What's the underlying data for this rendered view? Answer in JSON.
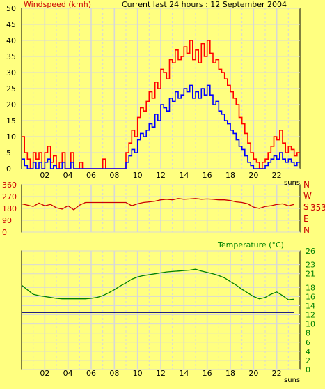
{
  "colors": {
    "background": "#ffff80",
    "grid": "#d8d8d8",
    "gust": "#ff0000",
    "avg": "#0000ff",
    "direction": "#cc0000",
    "temperature": "#008000",
    "reference_line": "#000080",
    "axis_text_dark": "#000000",
    "axis_text_red": "#cc0000",
    "axis_text_green": "#008000"
  },
  "chart_data": [
    {
      "type": "line",
      "title": "Windspeed (kmh)",
      "subtitle": "Current last 24 hours : 12 September 2004",
      "xlabel": "",
      "x_unit_label": "suns",
      "x_ticks": [
        "02",
        "04",
        "06",
        "08",
        "10",
        "12",
        "14",
        "16",
        "18",
        "20",
        "22"
      ],
      "ylim": [
        0,
        50
      ],
      "y_ticks": [
        0,
        5,
        10,
        15,
        20,
        25,
        30,
        35,
        40,
        45,
        50
      ],
      "grid": true,
      "series": [
        {
          "role": "gust",
          "x": [
            0,
            0.25,
            0.5,
            0.75,
            1,
            1.25,
            1.5,
            1.75,
            2,
            2.25,
            2.5,
            2.75,
            3,
            3.25,
            3.5,
            3.75,
            4,
            4.25,
            4.5,
            4.75,
            5,
            5.25,
            5.5,
            5.75,
            6,
            6.25,
            6.5,
            6.75,
            7,
            7.25,
            7.5,
            7.75,
            8,
            8.25,
            8.5,
            8.75,
            9,
            9.25,
            9.5,
            9.75,
            10,
            10.25,
            10.5,
            10.75,
            11,
            11.25,
            11.5,
            11.75,
            12,
            12.25,
            12.5,
            12.75,
            13,
            13.25,
            13.5,
            13.75,
            14,
            14.25,
            14.5,
            14.75,
            15,
            15.25,
            15.5,
            15.75,
            16,
            16.25,
            16.5,
            16.75,
            17,
            17.25,
            17.5,
            17.75,
            18,
            18.25,
            18.5,
            18.75,
            19,
            19.25,
            19.5,
            19.75,
            20,
            20.25,
            20.5,
            20.75,
            21,
            21.25,
            21.5,
            21.75,
            22,
            22.25,
            22.5,
            22.75,
            23,
            23.25,
            23.5,
            23.75
          ],
          "values": [
            10,
            5,
            3,
            0,
            5,
            3,
            5,
            0,
            5,
            7,
            2,
            4,
            0,
            2,
            5,
            0,
            0,
            5,
            0,
            0,
            2,
            0,
            0,
            0,
            0,
            0,
            0,
            0,
            3,
            0,
            0,
            0,
            0,
            0,
            0,
            0,
            5,
            8,
            12,
            10,
            16,
            19,
            18,
            21,
            24,
            22,
            27,
            25,
            31,
            30,
            28,
            34,
            33,
            37,
            34,
            35,
            38,
            36,
            40,
            34,
            37,
            33,
            39,
            35,
            40,
            36,
            33,
            34,
            31,
            30,
            28,
            26,
            24,
            22,
            20,
            16,
            14,
            11,
            8,
            5,
            3,
            2,
            0,
            2,
            3,
            5,
            7,
            10,
            9,
            12,
            8,
            5,
            7,
            6,
            4,
            5
          ],
          "note": "values approximate; series line colored red"
        },
        {
          "role": "average",
          "x": [
            0,
            0.25,
            0.5,
            0.75,
            1,
            1.25,
            1.5,
            1.75,
            2,
            2.25,
            2.5,
            2.75,
            3,
            3.25,
            3.5,
            3.75,
            4,
            4.25,
            4.5,
            4.75,
            5,
            5.25,
            5.5,
            5.75,
            6,
            6.25,
            6.5,
            6.75,
            7,
            7.25,
            7.5,
            7.75,
            8,
            8.25,
            8.5,
            8.75,
            9,
            9.25,
            9.5,
            9.75,
            10,
            10.25,
            10.5,
            10.75,
            11,
            11.25,
            11.5,
            11.75,
            12,
            12.25,
            12.5,
            12.75,
            13,
            13.25,
            13.5,
            13.75,
            14,
            14.25,
            14.5,
            14.75,
            15,
            15.25,
            15.5,
            15.75,
            16,
            16.25,
            16.5,
            16.75,
            17,
            17.25,
            17.5,
            17.75,
            18,
            18.25,
            18.5,
            18.75,
            19,
            19.25,
            19.5,
            19.75,
            20,
            20.25,
            20.5,
            20.75,
            21,
            21.25,
            21.5,
            21.75,
            22,
            22.25,
            22.5,
            22.75,
            23,
            23.25,
            23.5,
            23.75
          ],
          "values": [
            3,
            1,
            0,
            0,
            2,
            0,
            2,
            0,
            2,
            3,
            0,
            1,
            0,
            0,
            2,
            0,
            0,
            2,
            0,
            0,
            0,
            0,
            0,
            0,
            0,
            0,
            0,
            0,
            0,
            0,
            0,
            0,
            0,
            0,
            0,
            0,
            2,
            4,
            6,
            5,
            9,
            11,
            10,
            12,
            14,
            13,
            17,
            15,
            20,
            19,
            18,
            22,
            21,
            24,
            22,
            23,
            25,
            24,
            26,
            22,
            24,
            22,
            25,
            23,
            26,
            23,
            20,
            21,
            18,
            17,
            15,
            14,
            12,
            11,
            9,
            7,
            6,
            4,
            2,
            1,
            0,
            0,
            0,
            0,
            1,
            2,
            3,
            4,
            3,
            5,
            3,
            2,
            3,
            2,
            1,
            2
          ]
        }
      ]
    },
    {
      "type": "line",
      "title": "",
      "x_unit_label": "",
      "x_ticks": [],
      "ylim": [
        0,
        360
      ],
      "y_ticks": [
        0,
        90,
        180,
        270,
        360
      ],
      "right_labels": [
        "N",
        "W",
        "S",
        "E",
        "N"
      ],
      "current_value": "353",
      "grid": true,
      "series": [
        {
          "role": "direction",
          "x": [
            0,
            0.5,
            1,
            1.5,
            2,
            2.5,
            3,
            3.5,
            4,
            4.5,
            5,
            5.5,
            6,
            6.5,
            7,
            7.5,
            8,
            8.5,
            9,
            9.5,
            10,
            10.5,
            11,
            11.5,
            12,
            12.5,
            13,
            13.5,
            14,
            14.5,
            15,
            15.5,
            16,
            16.5,
            17,
            17.5,
            18,
            18.5,
            19,
            19.5,
            20,
            20.5,
            21,
            21.5,
            22,
            22.5,
            23,
            23.5
          ],
          "values": [
            215,
            205,
            195,
            220,
            200,
            210,
            185,
            175,
            200,
            170,
            205,
            225,
            225,
            225,
            225,
            225,
            225,
            225,
            225,
            200,
            215,
            225,
            230,
            235,
            245,
            250,
            245,
            255,
            250,
            252,
            255,
            250,
            252,
            250,
            245,
            245,
            240,
            230,
            225,
            215,
            190,
            180,
            195,
            200,
            210,
            215,
            200,
            210
          ]
        }
      ]
    },
    {
      "type": "line",
      "title": "Temperature (°C)",
      "x_unit_label": "suns",
      "x_ticks": [
        "02",
        "04",
        "06",
        "08",
        "10",
        "12",
        "14",
        "16",
        "18",
        "20",
        "22"
      ],
      "ylim": [
        0,
        26
      ],
      "y_ticks": [
        0,
        2,
        4,
        6,
        8,
        10,
        12,
        14,
        16,
        18,
        21,
        23,
        26
      ],
      "grid": true,
      "series": [
        {
          "role": "temperature",
          "x": [
            0,
            0.5,
            1,
            1.5,
            2,
            2.5,
            3,
            3.5,
            4,
            4.5,
            5,
            5.5,
            6,
            6.5,
            7,
            7.5,
            8,
            8.5,
            9,
            9.5,
            10,
            10.5,
            11,
            11.5,
            12,
            12.5,
            13,
            13.5,
            14,
            14.5,
            15,
            15.5,
            16,
            16.5,
            17,
            17.5,
            18,
            18.5,
            19,
            19.5,
            20,
            20.5,
            21,
            21.5,
            22,
            22.5,
            23,
            23.5
          ],
          "values": [
            18.5,
            17.5,
            16.5,
            16.2,
            16.0,
            15.8,
            15.6,
            15.5,
            15.5,
            15.5,
            15.5,
            15.5,
            15.6,
            15.8,
            16.2,
            16.8,
            17.5,
            18.3,
            19.0,
            19.8,
            20.3,
            20.6,
            20.8,
            21.0,
            21.2,
            21.4,
            21.5,
            21.6,
            21.7,
            21.8,
            22.0,
            21.6,
            21.3,
            21.0,
            20.6,
            20.1,
            19.3,
            18.5,
            17.6,
            16.8,
            16.0,
            15.5,
            15.8,
            16.5,
            17.0,
            16.2,
            15.3,
            15.4
          ]
        },
        {
          "role": "reference",
          "x": [
            0,
            23.5
          ],
          "values": [
            12.5,
            12.5
          ]
        }
      ]
    }
  ]
}
